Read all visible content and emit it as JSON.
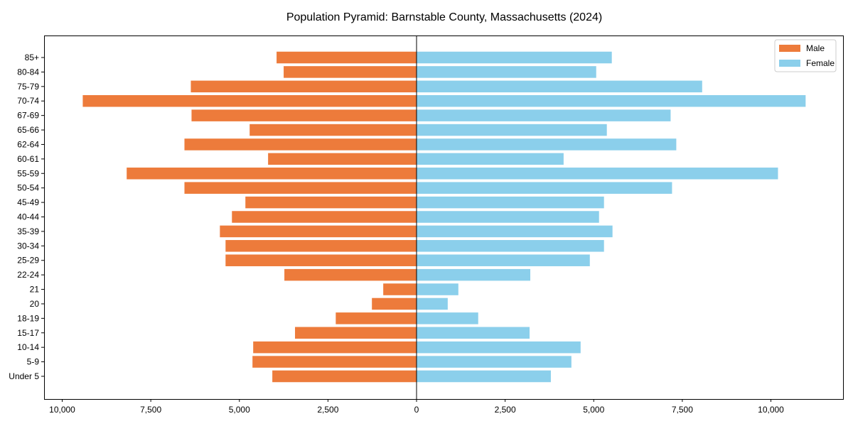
{
  "chart_data": {
    "type": "bar",
    "orientation": "horizontal",
    "title": "Population Pyramid: Barnstable County, Massachusetts (2024)",
    "xlabel": "",
    "ylabel": "",
    "xlim": [
      -11800,
      11800
    ],
    "x_ticks": [
      -10000,
      -7500,
      -5000,
      -2500,
      0,
      2500,
      5000,
      7500,
      10000
    ],
    "x_tick_labels": [
      "10,000",
      "7,500",
      "5,000",
      "2,500",
      "0",
      "2,500",
      "5,000",
      "7,500",
      "10,000"
    ],
    "legend_position": "top-right",
    "grid": false,
    "categories": [
      "85+",
      "80-84",
      "75-79",
      "70-74",
      "67-69",
      "65-66",
      "62-64",
      "60-61",
      "55-59",
      "50-54",
      "45-49",
      "40-44",
      "35-39",
      "30-34",
      "25-29",
      "22-24",
      "21",
      "20",
      "18-19",
      "15-17",
      "10-14",
      "5-9",
      "Under 5"
    ],
    "series": [
      {
        "name": "Male",
        "color": "#ED7B3B",
        "side": "left",
        "values": [
          3950,
          3750,
          6370,
          9420,
          6350,
          4710,
          6550,
          4190,
          8180,
          6550,
          4830,
          5210,
          5550,
          5390,
          5390,
          3730,
          940,
          1260,
          2280,
          3430,
          4610,
          4630,
          4070
        ]
      },
      {
        "name": "Female",
        "color": "#8BCFEB",
        "side": "right",
        "values": [
          5510,
          5070,
          8060,
          10980,
          7170,
          5370,
          7330,
          4150,
          10200,
          7210,
          5290,
          5150,
          5530,
          5290,
          4890,
          3210,
          1180,
          880,
          1740,
          3190,
          4630,
          4370,
          3790
        ]
      }
    ]
  }
}
